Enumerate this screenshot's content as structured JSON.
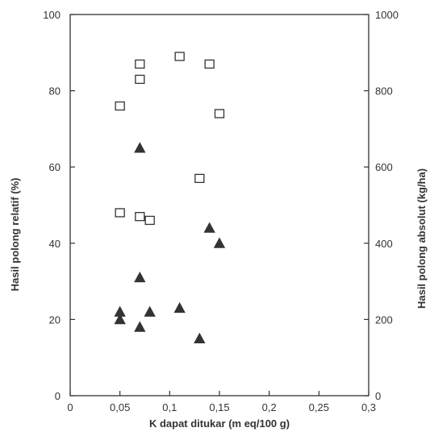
{
  "chart_data": {
    "type": "scatter",
    "title": "",
    "xlabel": "K dapat ditukar (m eq/100 g)",
    "ylabel_left": "Hasil polong relatif (%)",
    "ylabel_right": "Hasil polong absolut (kg/ha)",
    "xlim": [
      0,
      0.3
    ],
    "ylim_left": [
      0,
      100
    ],
    "ylim_right": [
      0,
      1000
    ],
    "x_ticks": [
      "0",
      "0,05",
      "0,1",
      "0,15",
      "0,2",
      "0,25",
      "0,3"
    ],
    "y_ticks_left": [
      "0",
      "20",
      "40",
      "60",
      "80",
      "100"
    ],
    "y_ticks_right": [
      "0",
      "200",
      "400",
      "600",
      "800",
      "1000"
    ],
    "grid": false,
    "series": [
      {
        "marker": "open-square",
        "color": "#333333",
        "points": [
          {
            "x": 0.05,
            "y": 76
          },
          {
            "x": 0.07,
            "y": 87
          },
          {
            "x": 0.07,
            "y": 83
          },
          {
            "x": 0.11,
            "y": 89
          },
          {
            "x": 0.14,
            "y": 87
          },
          {
            "x": 0.15,
            "y": 74
          },
          {
            "x": 0.13,
            "y": 57
          },
          {
            "x": 0.05,
            "y": 48
          },
          {
            "x": 0.07,
            "y": 47
          },
          {
            "x": 0.08,
            "y": 46
          }
        ]
      },
      {
        "marker": "filled-triangle",
        "color": "#333333",
        "points": [
          {
            "x": 0.07,
            "y": 65
          },
          {
            "x": 0.14,
            "y": 44
          },
          {
            "x": 0.15,
            "y": 40
          },
          {
            "x": 0.07,
            "y": 31
          },
          {
            "x": 0.05,
            "y": 22
          },
          {
            "x": 0.05,
            "y": 20
          },
          {
            "x": 0.08,
            "y": 22
          },
          {
            "x": 0.11,
            "y": 23
          },
          {
            "x": 0.07,
            "y": 18
          },
          {
            "x": 0.13,
            "y": 15
          }
        ]
      }
    ]
  }
}
